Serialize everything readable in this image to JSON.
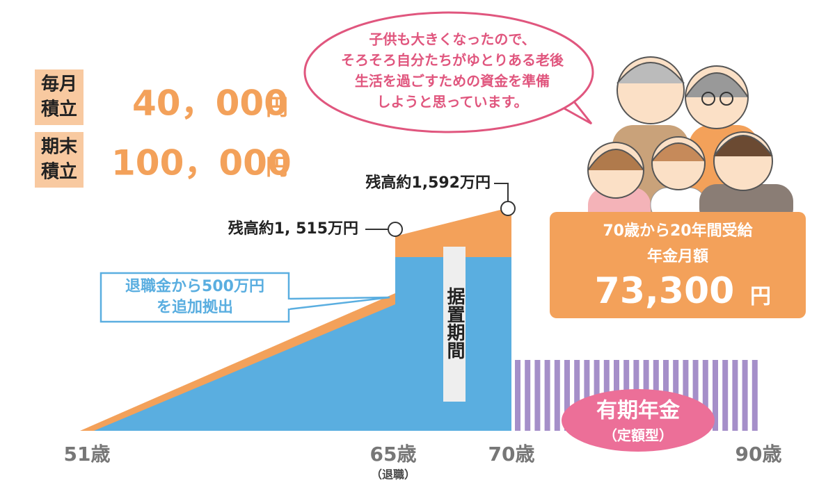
{
  "savings": [
    {
      "label": [
        "毎月",
        "積立"
      ],
      "amount": "40，000",
      "unit": "円"
    },
    {
      "label": [
        "期末",
        "積立"
      ],
      "amount": "100，000",
      "unit": "円"
    }
  ],
  "speech": [
    "子供も大きくなったので、",
    "そろそろ自分たちがゆとりある老後",
    "生活を過ごすための資金を準備",
    "しようと思っています。"
  ],
  "balances": [
    "残高約1,592万円",
    "残高約1, 515万円"
  ],
  "retirement_note": [
    "退職金から500万円",
    "を追加拠出"
  ],
  "deferral": "据置期間",
  "pension_box": {
    "line1": "70歳から20年間受給",
    "line2": "年金月額",
    "amount": "73,300",
    "unit": "円"
  },
  "annuity": {
    "name": "有期年金",
    "kind": "（定額型）"
  },
  "axis": {
    "age51": "51歳",
    "age65": "65歳",
    "retire": "（退職）",
    "age70": "70歳",
    "age90": "90歳"
  }
}
